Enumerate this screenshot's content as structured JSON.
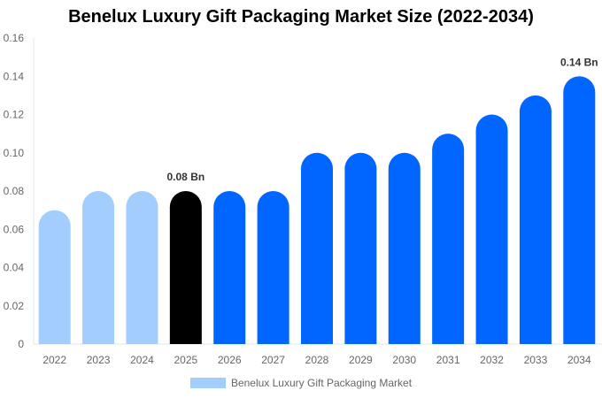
{
  "chart_data": {
    "type": "bar",
    "title": "Benelux Luxury Gift Packaging Market Size (2022-2034)",
    "categories": [
      "2022",
      "2023",
      "2024",
      "2025",
      "2026",
      "2027",
      "2028",
      "2029",
      "2030",
      "2031",
      "2032",
      "2033",
      "2034"
    ],
    "series": [
      {
        "name": "Benelux Luxury Gift Packaging Market",
        "values": [
          0.07,
          0.08,
          0.08,
          0.08,
          0.08,
          0.08,
          0.1,
          0.1,
          0.1,
          0.11,
          0.12,
          0.13,
          0.14
        ]
      }
    ],
    "bar_colors": [
      "#a3cdfd",
      "#a3cdfd",
      "#a3cdfd",
      "#000000",
      "#0066ff",
      "#0066ff",
      "#0066ff",
      "#0066ff",
      "#0066ff",
      "#0066ff",
      "#0066ff",
      "#0066ff",
      "#0066ff"
    ],
    "data_labels": {
      "2025": "0.08 Bn",
      "2034": "0.14 Bn"
    },
    "ylim": [
      0,
      0.16
    ],
    "yticks": [
      "0",
      "0.02",
      "0.04",
      "0.06",
      "0.08",
      "0.10",
      "0.12",
      "0.14",
      "0.16"
    ],
    "grid": false,
    "legend_position": "bottom",
    "legend_color": "#a3cdfd"
  }
}
